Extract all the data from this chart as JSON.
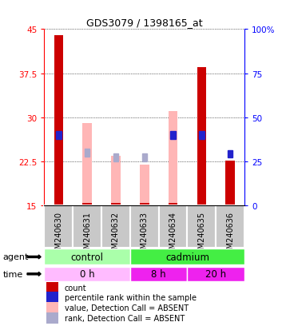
{
  "title": "GDS3079 / 1398165_at",
  "samples": [
    "GSM240630",
    "GSM240631",
    "GSM240632",
    "GSM240633",
    "GSM240634",
    "GSM240635",
    "GSM240636"
  ],
  "ylim_left": [
    15,
    45
  ],
  "ylim_right": [
    0,
    100
  ],
  "yticks_left": [
    15,
    22.5,
    30,
    37.5,
    45
  ],
  "yticks_right": [
    0,
    25,
    50,
    75,
    100
  ],
  "ytick_labels_left": [
    "15",
    "22.5",
    "30",
    "37.5",
    "45"
  ],
  "ytick_labels_right": [
    "0",
    "25",
    "50",
    "75",
    "100%"
  ],
  "red_bars": {
    "GSM240630": [
      15,
      44.0
    ],
    "GSM240631": [
      15,
      15.4
    ],
    "GSM240632": [
      15,
      15.4
    ],
    "GSM240633": [
      15,
      15.4
    ],
    "GSM240634": [
      15,
      15.4
    ],
    "GSM240635": [
      15,
      38.5
    ],
    "GSM240636": [
      15,
      22.6
    ]
  },
  "pink_bars": {
    "GSM240630": null,
    "GSM240631": [
      15,
      29.0
    ],
    "GSM240632": [
      15,
      23.5
    ],
    "GSM240633": [
      15,
      22.0
    ],
    "GSM240634": [
      15,
      31.0
    ],
    "GSM240635": null,
    "GSM240636": null
  },
  "blue_squares": {
    "GSM240630": 27.0,
    "GSM240631": null,
    "GSM240632": null,
    "GSM240633": null,
    "GSM240634": 27.0,
    "GSM240635": 27.0,
    "GSM240636": 23.8
  },
  "light_blue_squares": {
    "GSM240630": null,
    "GSM240631": 24.0,
    "GSM240632": 23.2,
    "GSM240633": 23.2,
    "GSM240634": null,
    "GSM240635": null,
    "GSM240636": null
  },
  "agent_groups": [
    {
      "label": "control",
      "start": 0,
      "end": 3,
      "color": "#AAFFAA"
    },
    {
      "label": "cadmium",
      "start": 3,
      "end": 7,
      "color": "#44EE44"
    }
  ],
  "time_colors": [
    "#FFBBFF",
    "#EE22EE",
    "#EE22EE"
  ],
  "time_groups": [
    {
      "label": "0 h",
      "start": 0,
      "end": 3
    },
    {
      "label": "8 h",
      "start": 3,
      "end": 5
    },
    {
      "label": "20 h",
      "start": 5,
      "end": 7
    }
  ],
  "bar_color_red": "#CC0000",
  "bar_color_pink": "#FFB6B6",
  "square_color_blue": "#2222CC",
  "square_color_lightblue": "#AAAACC",
  "label_bg_color": "#C8C8C8",
  "label_edge_color": "#FFFFFF",
  "grid_color": "#000000",
  "fig_bg": "#FFFFFF",
  "legend": [
    {
      "color": "#CC0000",
      "label": "count"
    },
    {
      "color": "#2222CC",
      "label": "percentile rank within the sample"
    },
    {
      "color": "#FFB6B6",
      "label": "value, Detection Call = ABSENT"
    },
    {
      "color": "#AAAACC",
      "label": "rank, Detection Call = ABSENT"
    }
  ]
}
